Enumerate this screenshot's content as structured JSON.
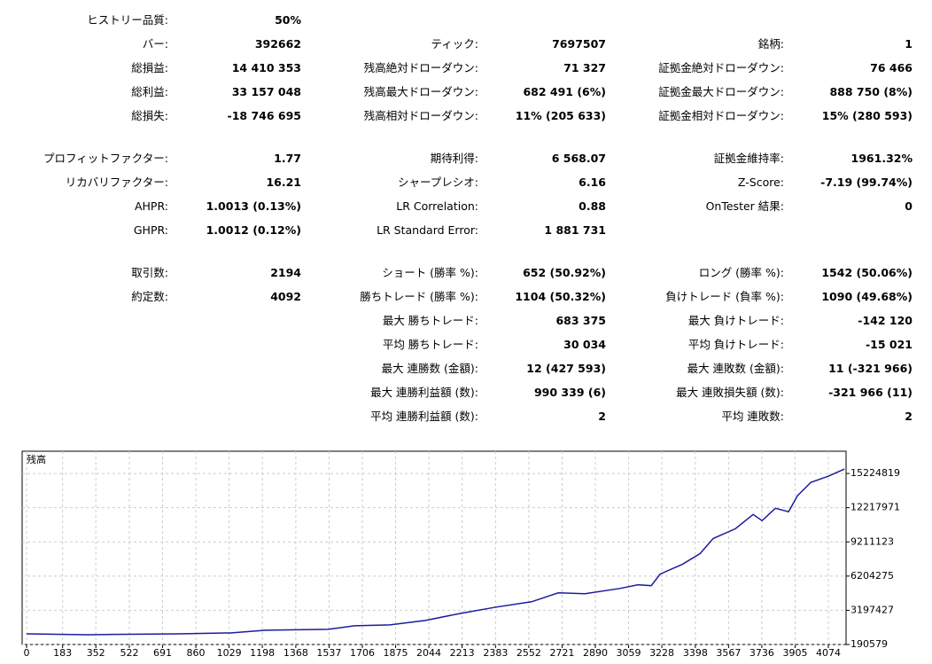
{
  "stats": {
    "sections": [
      [
        {
          "col1": [
            "ヒストリー品質:",
            "50%"
          ]
        },
        {
          "col1": [
            "バー:",
            "392662"
          ],
          "col2": [
            "ティック:",
            "7697507"
          ],
          "col3": [
            "銘柄:",
            "1"
          ]
        },
        {
          "col1": [
            "総損益:",
            "14 410 353"
          ],
          "col2": [
            "残高絶対ドローダウン:",
            "71 327"
          ],
          "col3": [
            "証拠金絶対ドローダウン:",
            "76 466"
          ]
        },
        {
          "col1": [
            "総利益:",
            "33 157 048"
          ],
          "col2": [
            "残高最大ドローダウン:",
            "682 491 (6%)"
          ],
          "col3": [
            "証拠金最大ドローダウン:",
            "888 750 (8%)"
          ]
        },
        {
          "col1": [
            "総損失:",
            "-18 746 695"
          ],
          "col2": [
            "残高相対ドローダウン:",
            "11% (205 633)"
          ],
          "col3": [
            "証拠金相対ドローダウン:",
            "15% (280 593)"
          ]
        }
      ],
      [
        {
          "col1": [
            "プロフィットファクター:",
            "1.77"
          ],
          "col2": [
            "期待利得:",
            "6 568.07"
          ],
          "col3": [
            "証拠金維持率:",
            "1961.32%"
          ]
        },
        {
          "col1": [
            "リカバリファクター:",
            "16.21"
          ],
          "col2": [
            "シャープレシオ:",
            "6.16"
          ],
          "col3": [
            "Z-Score:",
            "-7.19 (99.74%)"
          ]
        },
        {
          "col1": [
            "AHPR:",
            "1.0013 (0.13%)"
          ],
          "col2": [
            "LR Correlation:",
            "0.88"
          ],
          "col3": [
            "OnTester 結果:",
            "0"
          ]
        },
        {
          "col1": [
            "GHPR:",
            "1.0012 (0.12%)"
          ],
          "col2": [
            "LR Standard Error:",
            "1 881 731"
          ]
        }
      ],
      [
        {
          "col1": [
            "取引数:",
            "2194"
          ],
          "col2": [
            "ショート (勝率 %):",
            "652 (50.92%)"
          ],
          "col3": [
            "ロング (勝率 %):",
            "1542 (50.06%)"
          ]
        },
        {
          "col1": [
            "約定数:",
            "4092"
          ],
          "col2": [
            "勝ちトレード (勝率 %):",
            "1104 (50.32%)"
          ],
          "col3": [
            "負けトレード (負率 %):",
            "1090 (49.68%)"
          ]
        },
        {
          "col2": [
            "最大 勝ちトレード:",
            "683 375"
          ],
          "col3": [
            "最大 負けトレード:",
            "-142 120"
          ]
        },
        {
          "col2": [
            "平均 勝ちトレード:",
            "30 034"
          ],
          "col3": [
            "平均 負けトレード:",
            "-15 021"
          ]
        },
        {
          "col2": [
            "最大 連勝数 (金額):",
            "12 (427 593)"
          ],
          "col3": [
            "最大 連敗数 (金額):",
            "11 (-321 966)"
          ]
        },
        {
          "col2": [
            "最大 連勝利益額 (数):",
            "990 339 (6)"
          ],
          "col3": [
            "最大 連敗損失額 (数):",
            "-321 966 (11)"
          ]
        },
        {
          "col2": [
            "平均 連勝利益額 (数):",
            "2"
          ],
          "col3": [
            "平均 連敗数:",
            "2"
          ]
        }
      ]
    ]
  },
  "chart_data": {
    "type": "line",
    "title": "残高",
    "x": [
      0,
      315,
      765,
      1035,
      1216,
      1531,
      1666,
      1846,
      2026,
      2206,
      2386,
      2566,
      2701,
      2837,
      3017,
      3107,
      3174,
      3219,
      3332,
      3422,
      3489,
      3602,
      3692,
      3737,
      3805,
      3872,
      3917,
      3985,
      4075,
      4156
    ],
    "series": [
      {
        "name": "残高",
        "color": "#1c1c9e",
        "values": [
          1130000,
          1052000,
          1130000,
          1208000,
          1443000,
          1521000,
          1835000,
          1913000,
          2305000,
          2931000,
          3479000,
          3949000,
          4732000,
          4654000,
          5124000,
          5437000,
          5359000,
          6377000,
          7238000,
          8178000,
          9509000,
          10370000,
          11623000,
          11075000,
          12171000,
          11858000,
          13267000,
          14442000,
          14990000,
          15617000
        ]
      }
    ],
    "xlim": [
      0,
      4164
    ],
    "xticks": [
      0,
      183,
      352,
      522,
      691,
      860,
      1029,
      1198,
      1368,
      1537,
      1706,
      1875,
      2044,
      2213,
      2383,
      2552,
      2721,
      2890,
      3059,
      3228,
      3398,
      3567,
      3736,
      3905,
      4074
    ],
    "ylim": [
      190579,
      17180000
    ],
    "yticks": [
      190579,
      3197427,
      6204275,
      9211123,
      12217971,
      15224819
    ],
    "grid": true
  }
}
